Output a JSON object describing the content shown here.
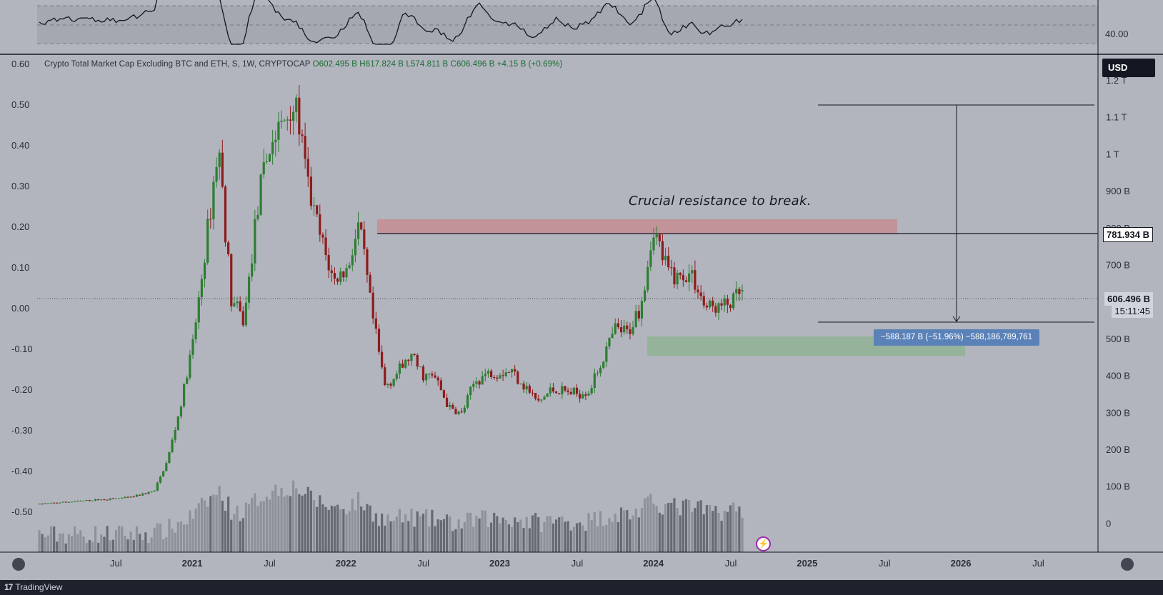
{
  "legend": {
    "title": "Crypto Total Market Cap Excluding BTC and ETH, S, 1W, CRYPTOCAP",
    "open": "O602.495 B",
    "high": "H617.824 B",
    "low": "L574.811 B",
    "close": "C606.496 B",
    "change": "+4.15 B (+0.69%)"
  },
  "annotation": "Crucial resistance to break.",
  "currency_button": "USD",
  "price_tags": {
    "resistance": "781.934 B",
    "last_price": "606.496 B",
    "countdown": "15:11:45"
  },
  "measure_label": "−588.187 B (−51.96%) −588,186,789,761",
  "indicator_pane": {
    "level_label": "40.00"
  },
  "footer": {
    "logo": "17",
    "brand": "TradingView"
  },
  "colors": {
    "background": "#b2b5be",
    "up": "#2e7d32",
    "down": "#8e1b1b",
    "resistance_zone": "#c48e94",
    "support_zone": "#8fb394",
    "volume": "#5d6068"
  },
  "chart_data": {
    "type": "candlestick",
    "timeframe": "1W",
    "left_scale": [
      "0.60",
      "0.50",
      "0.40",
      "0.30",
      "0.20",
      "0.10",
      "0.00",
      "-0.10",
      "-0.20",
      "-0.30",
      "-0.40",
      "-0.50"
    ],
    "right_scale": [
      "1.2 T",
      "1.1 T",
      "1 T",
      "900 B",
      "800 B",
      "700 B",
      "600 B",
      "500 B",
      "400 B",
      "300 B",
      "200 B",
      "100 B",
      "0"
    ],
    "time_axis": [
      {
        "label": "Jul",
        "bold": false
      },
      {
        "label": "2021",
        "bold": true
      },
      {
        "label": "Jul",
        "bold": false
      },
      {
        "label": "2022",
        "bold": true
      },
      {
        "label": "Jul",
        "bold": false
      },
      {
        "label": "2023",
        "bold": true
      },
      {
        "label": "Jul",
        "bold": false
      },
      {
        "label": "2024",
        "bold": true
      },
      {
        "label": "Jul",
        "bold": false
      },
      {
        "label": "2025",
        "bold": true
      },
      {
        "label": "Jul",
        "bold": false
      },
      {
        "label": "2026",
        "bold": true
      },
      {
        "label": "Jul",
        "bold": false
      }
    ],
    "y_unit": "B USD",
    "price_path": [
      [
        "2020-03",
        35
      ],
      [
        "2020-07",
        45
      ],
      [
        "2020-10",
        52
      ],
      [
        "2020-12",
        70
      ],
      [
        "2021-01",
        150
      ],
      [
        "2021-02",
        290
      ],
      [
        "2021-03",
        460
      ],
      [
        "2021-04",
        720
      ],
      [
        "2021-05",
        1000
      ],
      [
        "2021-06",
        580
      ],
      [
        "2021-07",
        520
      ],
      [
        "2021-08",
        820
      ],
      [
        "2021-09",
        990
      ],
      [
        "2021-10",
        1050
      ],
      [
        "2021-11",
        1110
      ],
      [
        "2021-12",
        880
      ],
      [
        "2022-01",
        740
      ],
      [
        "2022-02",
        630
      ],
      [
        "2022-03",
        660
      ],
      [
        "2022-04",
        780
      ],
      [
        "2022-05",
        540
      ],
      [
        "2022-06",
        350
      ],
      [
        "2022-07",
        385
      ],
      [
        "2022-08",
        430
      ],
      [
        "2022-09",
        380
      ],
      [
        "2022-10",
        370
      ],
      [
        "2022-11",
        290
      ],
      [
        "2022-12",
        275
      ],
      [
        "2023-01",
        360
      ],
      [
        "2023-02",
        385
      ],
      [
        "2023-04",
        390
      ],
      [
        "2023-06",
        305
      ],
      [
        "2023-07",
        340
      ],
      [
        "2023-09",
        330
      ],
      [
        "2023-10",
        340
      ],
      [
        "2023-11",
        420
      ],
      [
        "2023-12",
        500
      ],
      [
        "2024-01",
        490
      ],
      [
        "2024-02",
        570
      ],
      [
        "2024-03",
        770
      ],
      [
        "2024-04",
        660
      ],
      [
        "2024-05",
        640
      ],
      [
        "2024-06",
        650
      ],
      [
        "2024-07",
        560
      ],
      [
        "2024-08",
        560
      ],
      [
        "2024-09",
        570
      ],
      [
        "2024-10",
        606.496
      ]
    ],
    "last": {
      "open": 602.495,
      "high": 617.824,
      "low": 574.811,
      "close": 606.496
    },
    "resistance_zone_B": [
      781.934,
      820
    ],
    "support_zone_B": [
      460,
      510
    ],
    "measure": {
      "from_B": 1130,
      "to_B": 542,
      "change_B": -588.187,
      "change_pct": -51.96
    },
    "ylim_B": [
      -20,
      1250
    ]
  }
}
